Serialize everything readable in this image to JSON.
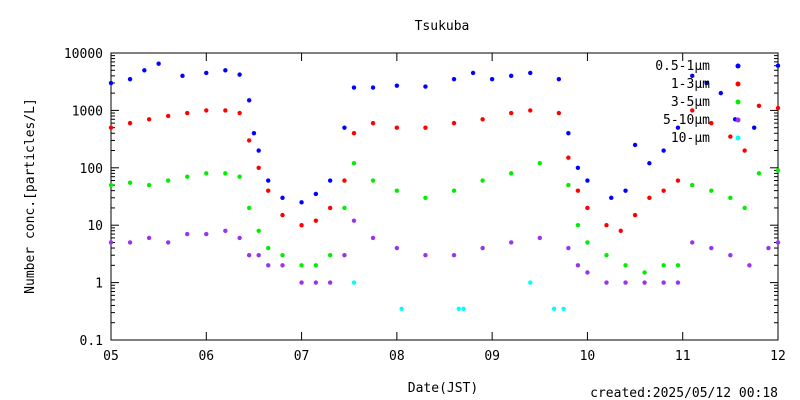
{
  "chart_data": {
    "type": "scatter",
    "title": "Tsukuba",
    "xlabel": "Date(JST)",
    "ylabel": "Number conc.[particles/L]",
    "footer": "created:2025/05/12 00:18",
    "y_scale": "log",
    "ylim": [
      0.1,
      10000
    ],
    "xlim": [
      "05",
      "12"
    ],
    "x_ticks": [
      "05",
      "06",
      "07",
      "08",
      "09",
      "10",
      "11",
      "12"
    ],
    "y_ticks": [
      "0.1",
      "1",
      "10",
      "100",
      "1000",
      "10000"
    ],
    "legend_position": "top-right",
    "grid": false,
    "series": [
      {
        "name": "0.5-1μm",
        "color": "#0000ff",
        "x": [
          5.0,
          5.2,
          5.35,
          5.5,
          5.75,
          6.0,
          6.2,
          6.35,
          6.45,
          6.5,
          6.55,
          6.65,
          6.8,
          7.0,
          7.15,
          7.3,
          7.45,
          7.55,
          7.75,
          8.0,
          8.3,
          8.6,
          8.8,
          9.0,
          9.2,
          9.4,
          9.7,
          9.8,
          9.9,
          10.0,
          10.25,
          10.4,
          10.5,
          10.65,
          10.8,
          10.95,
          11.1,
          11.25,
          11.4,
          11.55,
          11.75,
          12.0
        ],
        "values": [
          3000,
          3500,
          5000,
          6500,
          4000,
          4500,
          5000,
          4200,
          1500,
          400,
          200,
          60,
          30,
          25,
          35,
          60,
          500,
          2500,
          2500,
          2700,
          2600,
          3500,
          4500,
          3500,
          4000,
          4500,
          3500,
          400,
          100,
          60,
          30,
          40,
          250,
          120,
          200,
          500,
          4000,
          3000,
          2000,
          700,
          500,
          6000
        ]
      },
      {
        "name": "1-3μm",
        "color": "#ff0000",
        "x": [
          5.0,
          5.2,
          5.4,
          5.6,
          5.8,
          6.0,
          6.2,
          6.35,
          6.45,
          6.55,
          6.65,
          6.8,
          7.0,
          7.15,
          7.3,
          7.45,
          7.55,
          7.75,
          8.0,
          8.3,
          8.6,
          8.9,
          9.2,
          9.4,
          9.7,
          9.8,
          9.9,
          10.0,
          10.2,
          10.35,
          10.5,
          10.65,
          10.8,
          10.95,
          11.1,
          11.3,
          11.5,
          11.65,
          11.8,
          12.0
        ],
        "values": [
          500,
          600,
          700,
          800,
          900,
          1000,
          1000,
          900,
          300,
          100,
          40,
          15,
          10,
          12,
          20,
          60,
          400,
          600,
          500,
          500,
          600,
          700,
          900,
          1000,
          900,
          150,
          40,
          20,
          10,
          8,
          15,
          30,
          40,
          60,
          1000,
          600,
          350,
          200,
          1200,
          1100
        ]
      },
      {
        "name": "3-5μm",
        "color": "#00ee00",
        "x": [
          5.0,
          5.2,
          5.4,
          5.6,
          5.8,
          6.0,
          6.2,
          6.35,
          6.45,
          6.55,
          6.65,
          6.8,
          7.0,
          7.15,
          7.3,
          7.45,
          7.55,
          7.75,
          8.0,
          8.3,
          8.6,
          8.9,
          9.2,
          9.5,
          9.8,
          9.9,
          10.0,
          10.2,
          10.4,
          10.6,
          10.8,
          10.95,
          11.1,
          11.3,
          11.5,
          11.65,
          11.8,
          12.0
        ],
        "values": [
          50,
          55,
          50,
          60,
          70,
          80,
          80,
          70,
          20,
          8,
          4,
          3,
          2,
          2,
          3,
          20,
          120,
          60,
          40,
          30,
          40,
          60,
          80,
          120,
          50,
          10,
          5,
          3,
          2,
          1.5,
          2,
          2,
          50,
          40,
          30,
          20,
          80,
          90
        ]
      },
      {
        "name": "5-10μm",
        "color": "#9933ee",
        "x": [
          5.0,
          5.2,
          5.4,
          5.6,
          5.8,
          6.0,
          6.2,
          6.35,
          6.45,
          6.55,
          6.65,
          6.8,
          7.0,
          7.15,
          7.3,
          7.45,
          7.55,
          7.75,
          8.0,
          8.3,
          8.6,
          8.9,
          9.2,
          9.5,
          9.8,
          9.9,
          10.0,
          10.2,
          10.4,
          10.6,
          10.8,
          10.95,
          11.1,
          11.3,
          11.5,
          11.7,
          11.9,
          12.0
        ],
        "values": [
          5,
          5,
          6,
          5,
          7,
          7,
          8,
          6,
          3,
          3,
          2,
          2,
          1,
          1,
          1,
          3,
          12,
          6,
          4,
          3,
          3,
          4,
          5,
          6,
          4,
          2,
          1.5,
          1,
          1,
          1,
          1,
          1,
          5,
          4,
          3,
          2,
          4,
          5
        ]
      },
      {
        "name": "10-μm",
        "color": "#00ffff",
        "x": [
          7.55,
          8.05,
          8.65,
          8.7,
          9.4,
          9.65,
          9.75
        ],
        "values": [
          1.0,
          0.35,
          0.35,
          0.35,
          1.0,
          0.35,
          0.35
        ]
      }
    ]
  }
}
